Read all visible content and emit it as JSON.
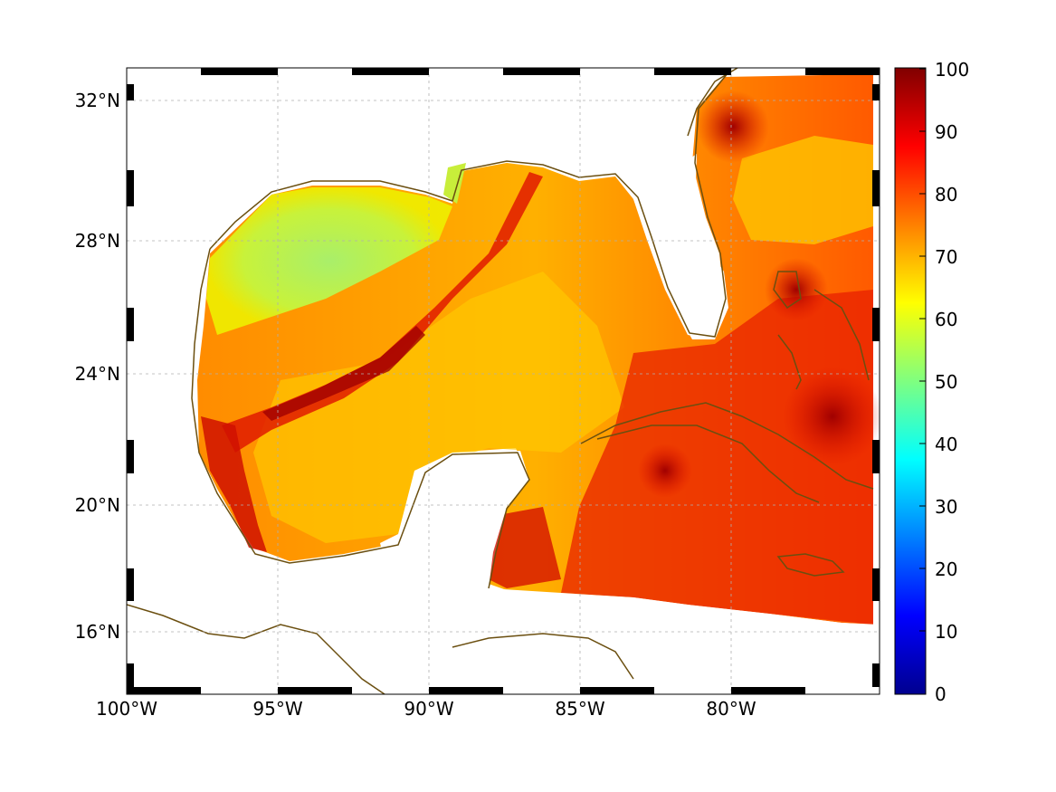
{
  "map": {
    "lon_labels": [
      "100°W",
      "95°W",
      "90°W",
      "85°W",
      "80°W"
    ],
    "lat_labels": [
      "32°N",
      "28°N",
      "24°N",
      "20°N",
      "16°N"
    ],
    "lon_range": [
      -100,
      -75.1
    ],
    "lat_range": [
      14.2,
      33.0
    ],
    "grid": true,
    "coastline_color": "#6b4f10",
    "frame_style": "alternating black/white border"
  },
  "colorbar": {
    "ticks": [
      "0",
      "10",
      "20",
      "30",
      "40",
      "50",
      "60",
      "70",
      "80",
      "90",
      "100"
    ],
    "range": [
      0,
      100
    ],
    "colormap": "jet"
  }
}
